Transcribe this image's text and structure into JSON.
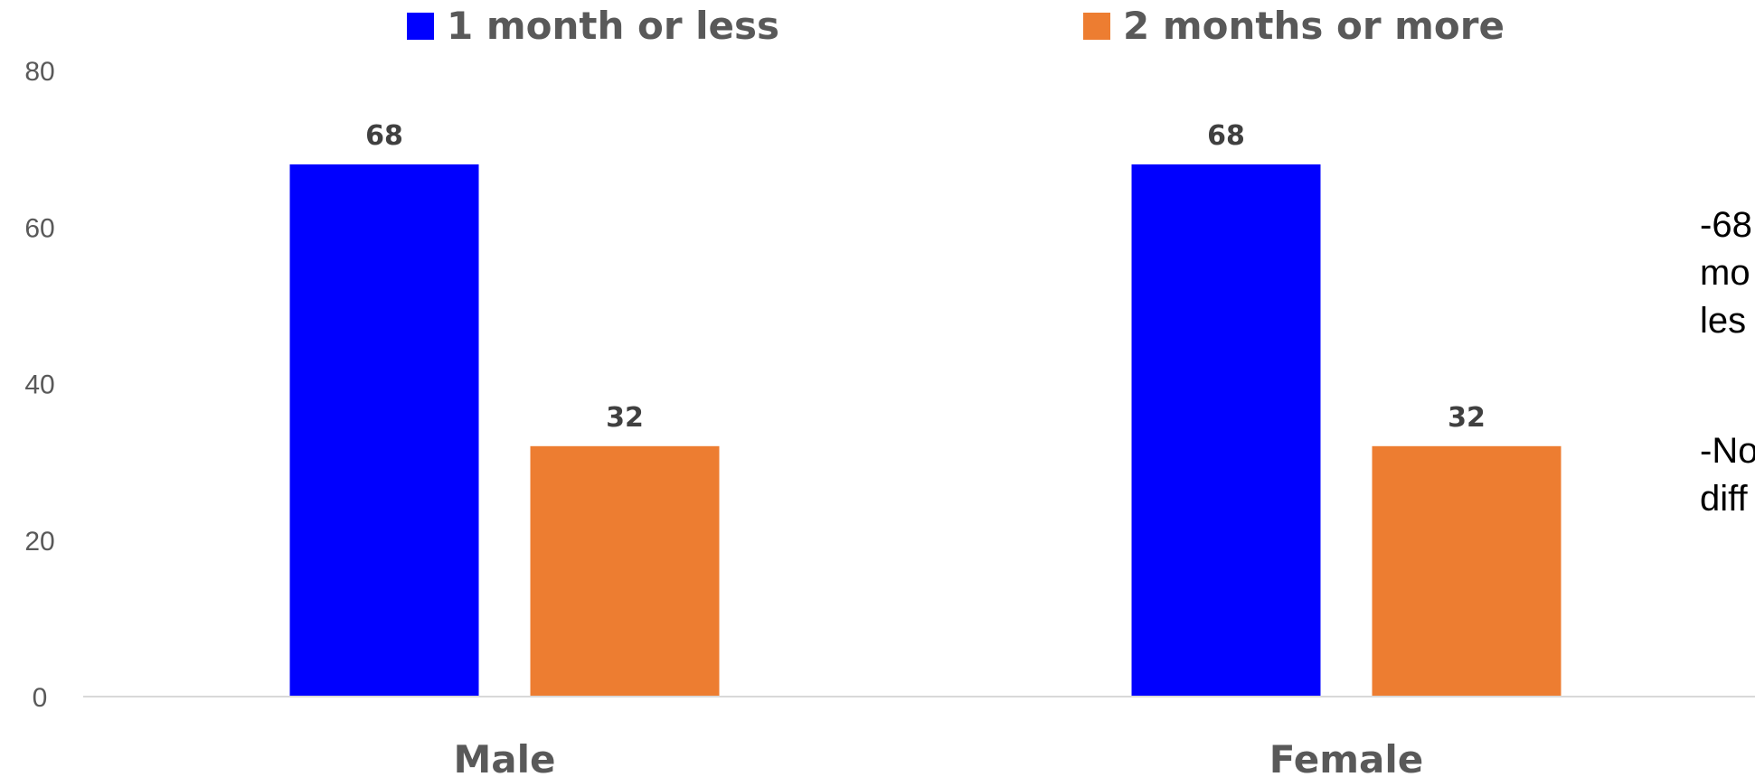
{
  "chart_data": {
    "type": "bar",
    "categories": [
      "Male",
      "Female"
    ],
    "series": [
      {
        "name": "1 month or less",
        "values": [
          68,
          68
        ],
        "color": "#0000FF"
      },
      {
        "name": "2 months or more",
        "values": [
          32,
          32
        ],
        "color": "#ED7D31"
      }
    ],
    "title": "",
    "xlabel": "",
    "ylabel": "",
    "ylim": [
      0,
      80
    ],
    "yticks": [
      0,
      20,
      40,
      60,
      80
    ],
    "grid": false,
    "legend_position": "top",
    "data_labels": true
  },
  "side_notes": {
    "note1": "-68\nmo\nles",
    "note2": "-No\ndiff"
  }
}
